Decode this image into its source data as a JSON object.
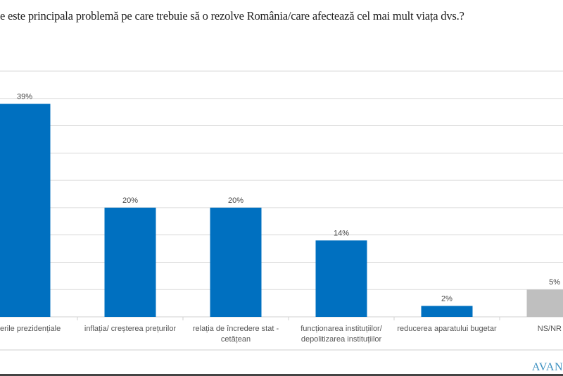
{
  "title": "e este principala problemă pe care trebuie să o rezolve România/care afectează cel mai mult viața dvs.?",
  "logo_text": "AVAN",
  "chart_data": {
    "type": "bar",
    "title": "e este principala problemă pe care trebuie să o rezolve România/care afectează cel mai mult viața dvs.?",
    "categories": [
      [
        "erile  prezidențiale"
      ],
      [
        "inflația/ creșterea prețurilor"
      ],
      [
        "relația de încredere stat -",
        "cetățean"
      ],
      [
        "funcționarea instituțiilor/",
        "depolitizarea instituțiilor"
      ],
      [
        "reducerea aparatului bugetar"
      ],
      [
        "NS/NR"
      ]
    ],
    "values": [
      39,
      20,
      20,
      14,
      2,
      5
    ],
    "data_labels": [
      "39%",
      "20%",
      "20%",
      "14%",
      "2%",
      "5%"
    ],
    "colors": [
      "#0070c0",
      "#0070c0",
      "#0070c0",
      "#0070c0",
      "#0070c0",
      "#bfbfbf"
    ],
    "ylim": [
      0,
      45
    ],
    "grid": true,
    "gridline_step": 5,
    "legend": "none"
  }
}
